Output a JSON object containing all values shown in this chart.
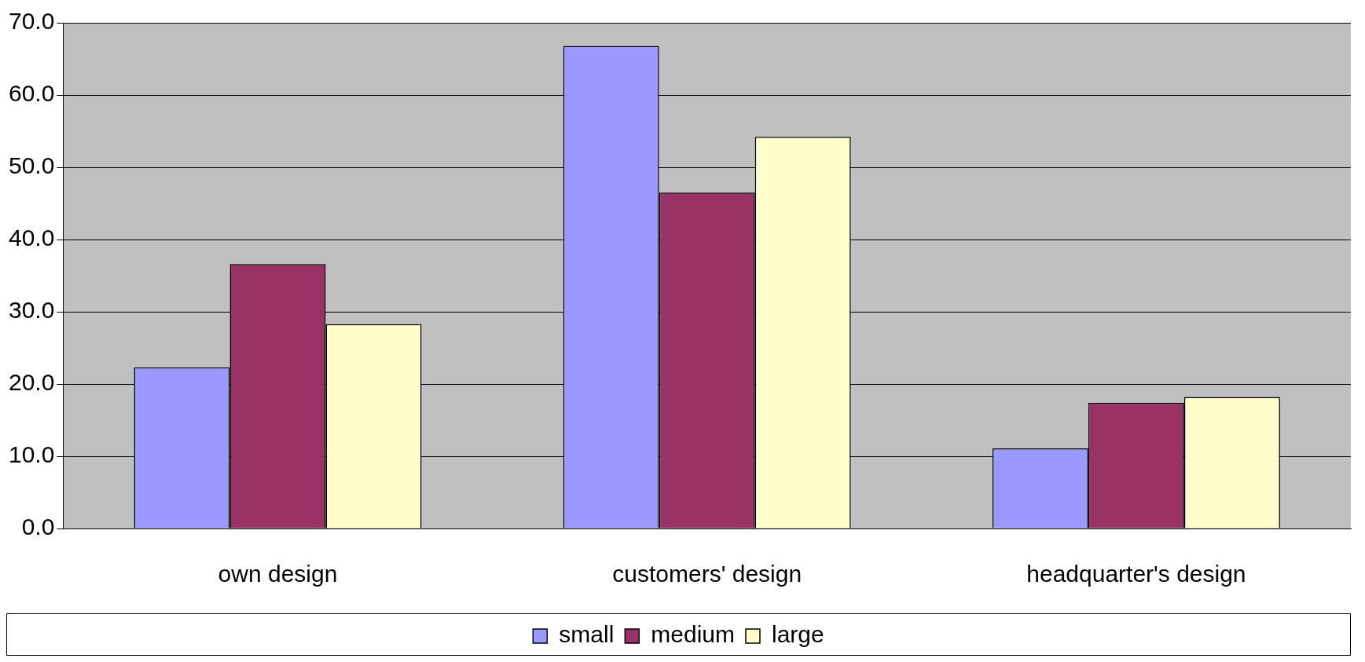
{
  "chart_data": {
    "type": "bar",
    "categories": [
      "own design",
      "customers' design",
      "headquarter's design"
    ],
    "series": [
      {
        "name": "small",
        "color": "#9999ff",
        "values": [
          22.3,
          66.8,
          11.1
        ]
      },
      {
        "name": "medium",
        "color": "#993366",
        "values": [
          36.6,
          46.5,
          17.4
        ]
      },
      {
        "name": "large",
        "color": "#ffffcc",
        "values": [
          28.3,
          54.2,
          18.2
        ]
      }
    ],
    "ylim": [
      0,
      70
    ],
    "yticks": [
      {
        "value": 0,
        "label": "0.0"
      },
      {
        "value": 10,
        "label": "10.0"
      },
      {
        "value": 20,
        "label": "20.0"
      },
      {
        "value": 30,
        "label": "30.0"
      },
      {
        "value": 40,
        "label": "40.0"
      },
      {
        "value": 50,
        "label": "50.0"
      },
      {
        "value": 60,
        "label": "60.0"
      },
      {
        "value": 70,
        "label": "70.0"
      }
    ],
    "grid": "y",
    "legend": "bottom"
  }
}
